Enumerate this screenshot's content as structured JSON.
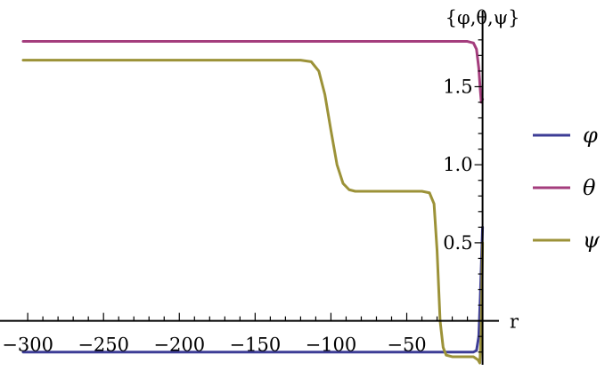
{
  "chart_data": {
    "type": "line",
    "xlabel": "r",
    "ylabel": "{φ,θ,ψ}",
    "xlim": [
      -303,
      2
    ],
    "ylim": [
      -0.27,
      1.93
    ],
    "x_ticks": [
      -300,
      -250,
      -200,
      -150,
      -100,
      -50
    ],
    "x_tick_labels": [
      "−300",
      "−250",
      "−200",
      "−150",
      "−100",
      "−50"
    ],
    "y_ticks": [
      0.5,
      1.0,
      1.5
    ],
    "y_tick_labels": [
      "0.5",
      "1.0",
      "1.5"
    ],
    "legend_position": "right",
    "series": [
      {
        "name": "φ",
        "color": "#3d3d96",
        "points": [
          [
            -303,
            -0.2
          ],
          [
            -6,
            -0.2
          ],
          [
            -4,
            -0.19
          ],
          [
            -2.5,
            -0.1
          ],
          [
            -1.5,
            0.15
          ],
          [
            -0.5,
            0.45
          ],
          [
            0,
            0.6
          ]
        ]
      },
      {
        "name": "θ",
        "color": "#a43d7d",
        "points": [
          [
            -303,
            1.79
          ],
          [
            -10,
            1.79
          ],
          [
            -6,
            1.78
          ],
          [
            -4,
            1.74
          ],
          [
            -2.5,
            1.62
          ],
          [
            -1.5,
            1.48
          ],
          [
            -0.8,
            1.4
          ],
          [
            0,
            1.42
          ]
        ]
      },
      {
        "name": "ψ",
        "color": "#9c9238",
        "points": [
          [
            -303,
            1.67
          ],
          [
            -120,
            1.67
          ],
          [
            -113,
            1.66
          ],
          [
            -108,
            1.6
          ],
          [
            -104,
            1.45
          ],
          [
            -100,
            1.22
          ],
          [
            -96,
            1.0
          ],
          [
            -92,
            0.88
          ],
          [
            -88,
            0.84
          ],
          [
            -84,
            0.83
          ],
          [
            -40,
            0.83
          ],
          [
            -35,
            0.82
          ],
          [
            -32,
            0.75
          ],
          [
            -30,
            0.45
          ],
          [
            -28,
            0.0
          ],
          [
            -26,
            -0.17
          ],
          [
            -24,
            -0.22
          ],
          [
            -20,
            -0.23
          ],
          [
            -6,
            -0.23
          ],
          [
            -3,
            -0.25
          ],
          [
            -1.8,
            -0.27
          ],
          [
            -1.0,
            -0.1
          ],
          [
            -0.3,
            0.3
          ],
          [
            0,
            0.5
          ]
        ]
      }
    ]
  }
}
